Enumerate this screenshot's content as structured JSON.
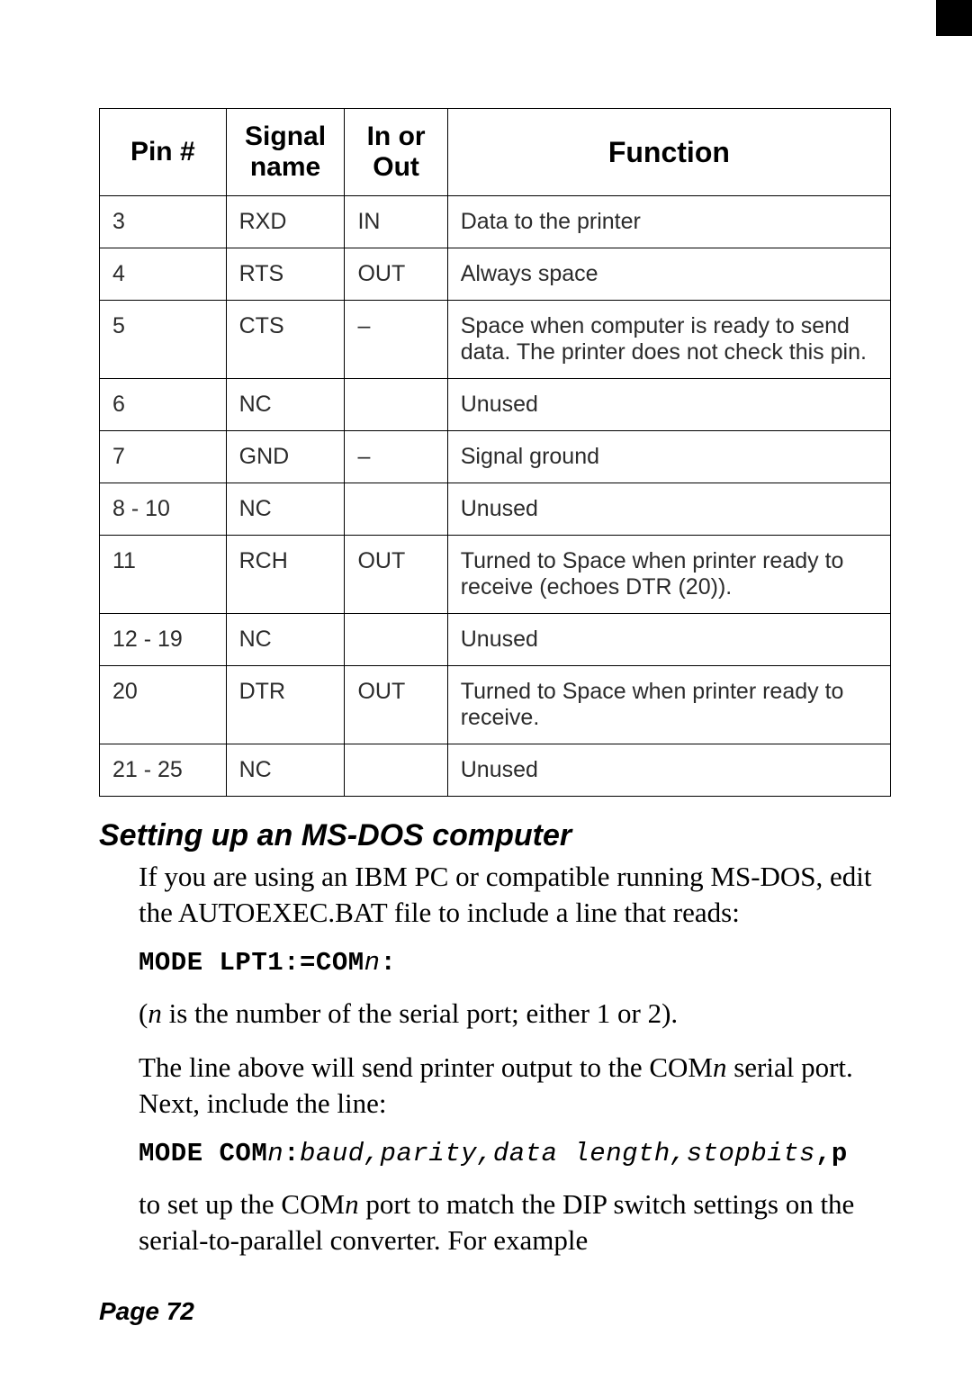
{
  "page": {
    "corner_mark_color": "#000000",
    "background": "#ffffff",
    "text_color": "#000000"
  },
  "table": {
    "columns": [
      "Pin #",
      "Signal name",
      "In or Out",
      "Function"
    ],
    "col_widths_pct": [
      16,
      15,
      13,
      56
    ],
    "header_fontsize": 30,
    "cell_fontsize": 25,
    "border_color": "#000000",
    "rows": [
      [
        "3",
        "RXD",
        "IN",
        "Data to the printer"
      ],
      [
        "4",
        "RTS",
        "OUT",
        "Always space"
      ],
      [
        "5",
        "CTS",
        "–",
        "Space when computer is ready to send data. The printer does not check this pin."
      ],
      [
        "6",
        "NC",
        "",
        "Unused"
      ],
      [
        "7",
        "GND",
        "–",
        "Signal ground"
      ],
      [
        "8 - 10",
        "NC",
        "",
        "Unused"
      ],
      [
        "11",
        "RCH",
        "OUT",
        "Turned to Space when printer ready to receive (echoes DTR (20))."
      ],
      [
        "12 - 19",
        "NC",
        "",
        "Unused"
      ],
      [
        "20",
        "DTR",
        "OUT",
        "Turned to Space when printer ready to receive."
      ],
      [
        "21 - 25",
        "NC",
        "",
        "Unused"
      ]
    ]
  },
  "section_heading": "Setting up an MS-DOS computer",
  "para1": "If you are using an IBM PC or compatible running MS-DOS, edit the AUTOEXEC.BAT file to include a line that reads:",
  "code1_prefix": "MODE LPT1:=COM",
  "code1_ital": "n",
  "code1_suffix": ":",
  "para2_open": "(",
  "para2_ital1": "n",
  "para2_rest": " is the number of the serial port; either 1 or 2).",
  "para3a": "The line above will send printer output to the COM",
  "para3_ital": "n",
  "para3b": " serial port. Next, include the line:",
  "code2_prefix": "MODE COM",
  "code2_ital1": "n",
  "code2_mid1": ":",
  "code2_ital2": "baud,parity,data length,stopbits",
  "code2_suffix": ",p",
  "para4a": "to set up the COM",
  "para4_ital": "n",
  "para4b": " port to match the DIP switch settings on the serial-to-parallel converter. For example",
  "footer": "Page 72"
}
